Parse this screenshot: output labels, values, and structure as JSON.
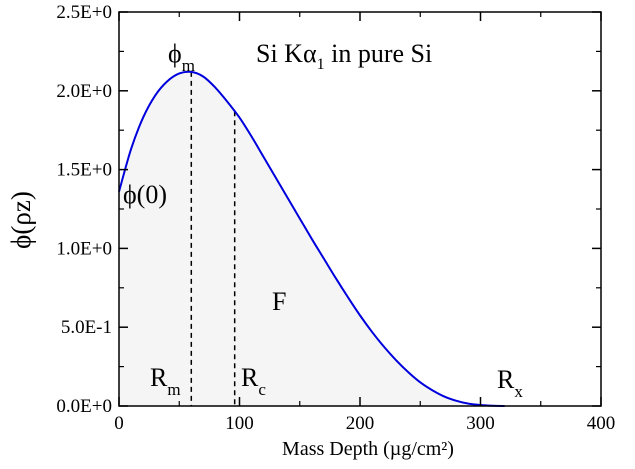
{
  "chart_data": {
    "type": "area",
    "title": "Si Kα1 in pure Si",
    "title_parts": {
      "main": "Si Kα",
      "sub": "1",
      "rest": " in pure Si"
    },
    "xlabel": "Mass Depth (µg/cm²)",
    "ylabel": "ϕ(ρz)",
    "xlim": [
      0,
      400
    ],
    "ylim": [
      0,
      2.5
    ],
    "x_ticks": [
      0,
      100,
      200,
      300,
      400
    ],
    "x_tick_labels": [
      "0",
      "100",
      "200",
      "300",
      "400"
    ],
    "y_ticks": [
      0,
      0.5,
      1.0,
      1.5,
      2.0,
      2.5
    ],
    "y_tick_labels": [
      "0.0E+0",
      "5.0E-1",
      "1.0E+0",
      "1.5E+0",
      "2.0E+0",
      "2.5E+0"
    ],
    "grid": false,
    "series": [
      {
        "color": "#0000dd",
        "fill_color": "#f5f5f5",
        "x": [
          0,
          10,
          20,
          30,
          40,
          50,
          60,
          70,
          80,
          90,
          100,
          110,
          120,
          130,
          140,
          150,
          160,
          170,
          180,
          190,
          200,
          210,
          220,
          230,
          240,
          250,
          260,
          270,
          280,
          290,
          300,
          310,
          320
        ],
        "y": [
          1.36,
          1.63,
          1.83,
          1.97,
          2.06,
          2.11,
          2.12,
          2.09,
          2.02,
          1.93,
          1.83,
          1.71,
          1.58,
          1.45,
          1.32,
          1.19,
          1.06,
          0.935,
          0.81,
          0.69,
          0.575,
          0.47,
          0.375,
          0.29,
          0.215,
          0.15,
          0.1,
          0.06,
          0.033,
          0.015,
          0.006,
          0.0015,
          0.0
        ]
      }
    ],
    "markers": [
      {
        "name": "Rm",
        "x": 60,
        "y_top": 2.12
      },
      {
        "name": "Rc",
        "x": 96,
        "y_top": 1.87
      }
    ],
    "annotations": {
      "phi_m": {
        "main": "ϕ",
        "sub": "m"
      },
      "phi_0": "ϕ(0)",
      "F": "F",
      "R_m": {
        "main": "R",
        "sub": "m"
      },
      "R_c": {
        "main": "R",
        "sub": "c"
      },
      "R_x": {
        "main": "R",
        "sub": "x"
      }
    }
  }
}
